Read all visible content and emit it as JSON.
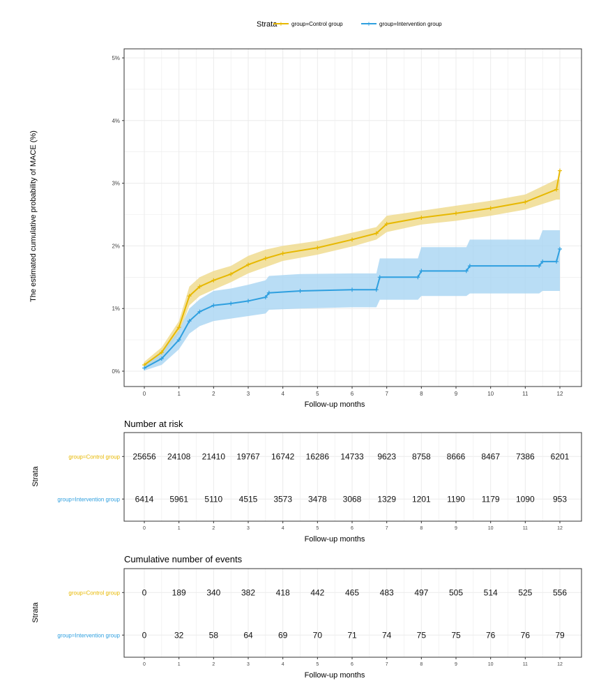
{
  "legend": {
    "title": "Strata",
    "items": [
      "group=Control group",
      "group=Intervention group"
    ]
  },
  "colors": {
    "control": "#E7B800",
    "control_band": "#EFD98A",
    "intervention": "#2E9FDF",
    "intervention_band": "#A7D5F2",
    "grid": "#EBEBEB",
    "frame": "#333333"
  },
  "chart_data": [
    {
      "type": "line",
      "title": "",
      "xlabel": "Follow-up months",
      "ylabel": "The estimated cumulative probability of MACE (%)",
      "xlim": [
        0,
        12
      ],
      "ylim": [
        0,
        5
      ],
      "x_ticks": [
        "0",
        "1",
        "2",
        "3",
        "4",
        "5",
        "6",
        "7",
        "8",
        "9",
        "10",
        "11",
        "12"
      ],
      "y_ticks": [
        "0%",
        "1%",
        "2%",
        "3%",
        "4%",
        "5%"
      ],
      "series": [
        {
          "name": "group=Control group",
          "x": [
            0,
            0.5,
            1.0,
            1.3,
            1.6,
            2.0,
            2.5,
            3.0,
            3.5,
            4.0,
            5.0,
            6.0,
            6.7,
            7.0,
            8.0,
            9.0,
            10.0,
            11.0,
            11.9,
            12.0
          ],
          "y": [
            0.1,
            0.3,
            0.7,
            1.2,
            1.35,
            1.45,
            1.55,
            1.7,
            1.8,
            1.88,
            1.97,
            2.1,
            2.2,
            2.35,
            2.45,
            2.52,
            2.6,
            2.7,
            2.9,
            3.2
          ],
          "lower": [
            0.05,
            0.22,
            0.6,
            1.05,
            1.2,
            1.3,
            1.42,
            1.56,
            1.66,
            1.76,
            1.86,
            1.99,
            2.1,
            2.22,
            2.34,
            2.4,
            2.48,
            2.58,
            2.74,
            2.74
          ],
          "upper": [
            0.15,
            0.38,
            0.8,
            1.35,
            1.5,
            1.6,
            1.68,
            1.84,
            1.94,
            2.0,
            2.08,
            2.21,
            2.3,
            2.48,
            2.56,
            2.64,
            2.72,
            2.82,
            3.06,
            3.06
          ]
        },
        {
          "name": "group=Intervention group",
          "x": [
            0,
            0.5,
            1.0,
            1.3,
            1.6,
            2.0,
            2.5,
            3.0,
            3.5,
            3.6,
            4.5,
            6.0,
            6.7,
            6.8,
            7.9,
            8.0,
            9.3,
            9.4,
            11.4,
            11.5,
            11.9,
            12.0
          ],
          "y": [
            0.05,
            0.2,
            0.5,
            0.8,
            0.95,
            1.05,
            1.08,
            1.12,
            1.18,
            1.25,
            1.28,
            1.3,
            1.3,
            1.5,
            1.5,
            1.6,
            1.6,
            1.68,
            1.68,
            1.75,
            1.75,
            1.95
          ],
          "lower": [
            0.01,
            0.1,
            0.35,
            0.6,
            0.72,
            0.8,
            0.84,
            0.88,
            0.92,
            0.98,
            1.0,
            1.02,
            1.02,
            1.14,
            1.14,
            1.2,
            1.2,
            1.24,
            1.24,
            1.28,
            1.28,
            1.28
          ],
          "upper": [
            0.1,
            0.3,
            0.65,
            1.0,
            1.15,
            1.28,
            1.32,
            1.38,
            1.45,
            1.52,
            1.55,
            1.56,
            1.56,
            1.8,
            1.8,
            1.98,
            1.98,
            2.1,
            2.1,
            2.25,
            2.25,
            2.25
          ]
        }
      ]
    },
    {
      "type": "table",
      "title": "Number at risk",
      "xlabel": "Follow-up months",
      "ylabel": "Strata",
      "x_ticks": [
        "0",
        "1",
        "2",
        "3",
        "4",
        "5",
        "6",
        "7",
        "8",
        "9",
        "10",
        "11",
        "12"
      ],
      "rows": [
        {
          "name": "group=Control group",
          "values": [
            25656,
            24108,
            21410,
            19767,
            16742,
            16286,
            14733,
            9623,
            8758,
            8666,
            8467,
            7386,
            6201
          ]
        },
        {
          "name": "group=Intervention group",
          "values": [
            6414,
            5961,
            5110,
            4515,
            3573,
            3478,
            3068,
            1329,
            1201,
            1190,
            1179,
            1090,
            953
          ]
        }
      ]
    },
    {
      "type": "table",
      "title": "Cumulative number of events",
      "xlabel": "Follow-up months",
      "ylabel": "Strata",
      "x_ticks": [
        "0",
        "1",
        "2",
        "3",
        "4",
        "5",
        "6",
        "7",
        "8",
        "9",
        "10",
        "11",
        "12"
      ],
      "rows": [
        {
          "name": "group=Control group",
          "values": [
            0,
            189,
            340,
            382,
            418,
            442,
            465,
            483,
            497,
            505,
            514,
            525,
            556
          ]
        },
        {
          "name": "group=Intervention group",
          "values": [
            0,
            32,
            58,
            64,
            69,
            70,
            71,
            74,
            75,
            75,
            76,
            76,
            79
          ]
        }
      ]
    }
  ]
}
